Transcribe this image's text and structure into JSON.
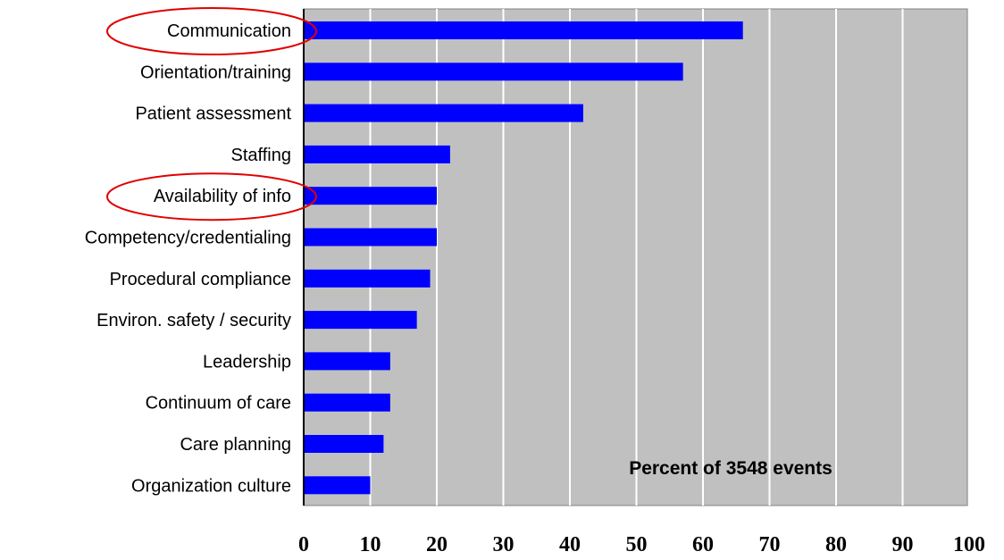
{
  "chart_data": {
    "type": "bar",
    "orientation": "horizontal",
    "categories": [
      "Communication",
      "Orientation/training",
      "Patient assessment",
      "Staffing",
      "Availability of info",
      "Competency/credentialing",
      "Procedural compliance",
      "Environ. safety / security",
      "Leadership",
      "Continuum of care",
      "Care planning",
      "Organization culture"
    ],
    "values": [
      66,
      57,
      42,
      22,
      20,
      20,
      19,
      17,
      13,
      13,
      12,
      10
    ],
    "xlim": [
      0,
      100
    ],
    "xticks": [
      0,
      10,
      20,
      30,
      40,
      50,
      60,
      70,
      80,
      90,
      100
    ],
    "annotation": "Percent of 3548 events",
    "highlighted_categories": [
      "Communication",
      "Availability of info"
    ],
    "grid": "vertical",
    "colors": {
      "bar": "#0000ff",
      "plot_background": "#c0c0c0",
      "gridline": "#ffffff",
      "highlight_ellipse": "#e00000"
    }
  }
}
